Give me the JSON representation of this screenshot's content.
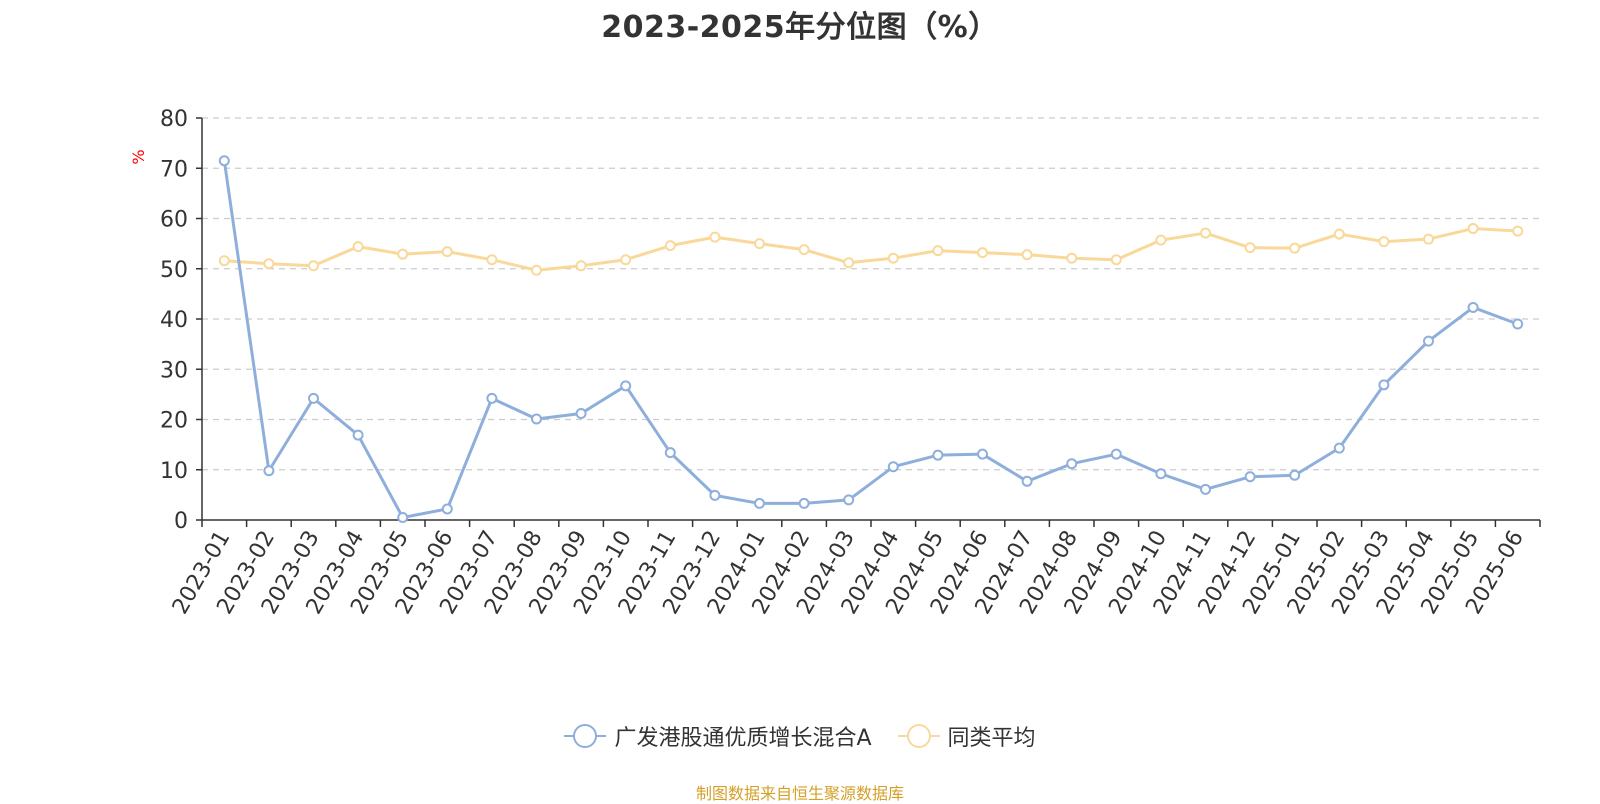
{
  "chart_data": {
    "type": "line",
    "title": "2023-2025年分位图（%）",
    "ylabel": "%",
    "xlabel": "",
    "ylim": [
      0,
      80
    ],
    "yticks": [
      0,
      10,
      20,
      30,
      40,
      50,
      60,
      70,
      80
    ],
    "grid": true,
    "legend_position": "bottom",
    "categories": [
      "2023-01",
      "2023-02",
      "2023-03",
      "2023-04",
      "2023-05",
      "2023-06",
      "2023-07",
      "2023-08",
      "2023-09",
      "2023-10",
      "2023-11",
      "2023-12",
      "2024-01",
      "2024-02",
      "2024-03",
      "2024-04",
      "2024-05",
      "2024-06",
      "2024-07",
      "2024-08",
      "2024-09",
      "2024-10",
      "2024-11",
      "2024-12",
      "2025-01",
      "2025-02",
      "2025-03",
      "2025-04",
      "2025-05",
      "2025-06"
    ],
    "series": [
      {
        "name": "广发港股通优质增长混合A",
        "color": "#8eaedc",
        "values": [
          71.5,
          9.8,
          24.2,
          16.9,
          0.5,
          2.2,
          24.2,
          20.1,
          21.2,
          26.7,
          13.4,
          4.9,
          3.3,
          3.3,
          4.0,
          10.6,
          12.9,
          13.1,
          7.7,
          11.2,
          13.1,
          9.2,
          6.1,
          8.6,
          8.9,
          14.3,
          26.9,
          35.6,
          42.3,
          39.0
        ]
      },
      {
        "name": "同类平均",
        "color": "#f9d89a",
        "values": [
          51.6,
          51.0,
          50.6,
          54.4,
          52.9,
          53.4,
          51.8,
          49.7,
          50.6,
          51.8,
          54.6,
          56.3,
          55.0,
          53.8,
          51.2,
          52.1,
          53.6,
          53.2,
          52.8,
          52.1,
          51.8,
          55.7,
          57.1,
          54.2,
          54.1,
          56.9,
          55.4,
          55.9,
          58.0,
          57.5
        ]
      }
    ]
  },
  "source_text": "制图数据来自恒生聚源数据库",
  "colors": {
    "axis": "#333333",
    "grid": "#cccccc",
    "ylabel": "#ff0000",
    "source": "#d4a02a"
  }
}
